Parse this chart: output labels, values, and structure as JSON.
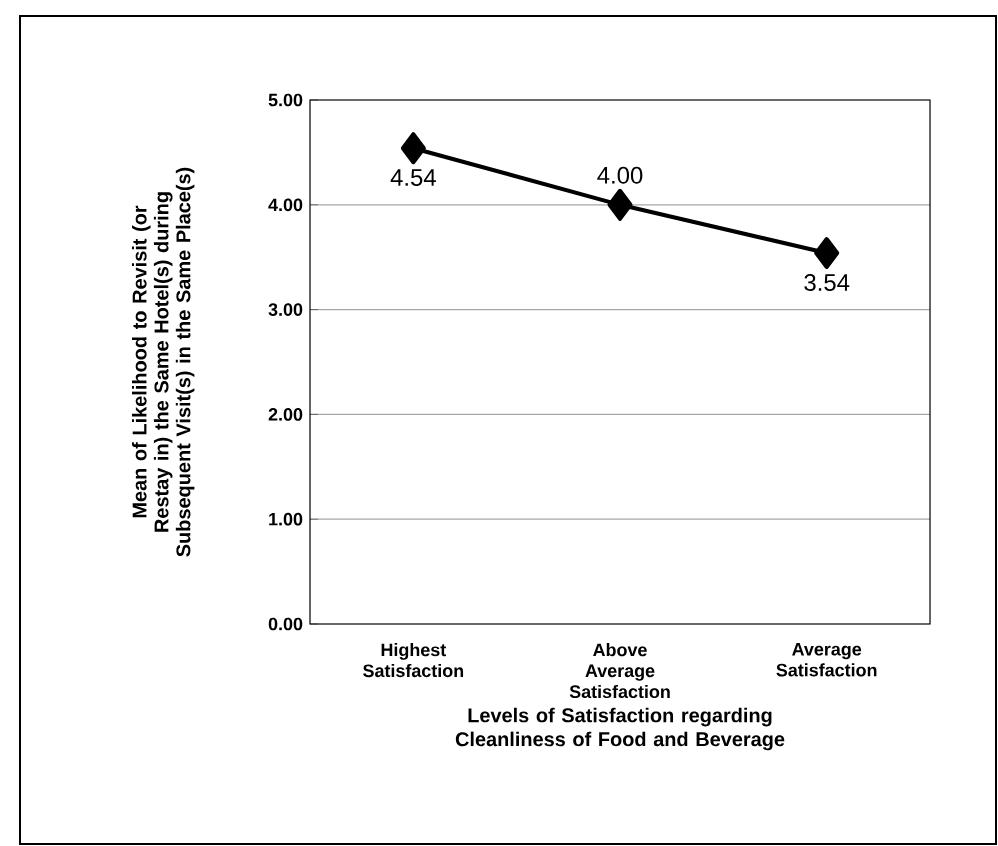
{
  "chart_data": {
    "type": "line",
    "xlabel": "Levels of Satisfaction regarding Cleanliness of Food and Beverage",
    "ylabel": "Mean of Likelihood to Revisit (or Restay in) the Same Hotel(s)  during Subsequent Visit(s) in the Same Place(s)",
    "categories": [
      "Highest Satisfaction",
      "Above Average Satisfaction",
      "Average Satisfaction"
    ],
    "values": [
      4.54,
      4.0,
      3.54
    ],
    "value_labels": [
      "4.54",
      "4.00",
      "3.54"
    ],
    "color": "#000000",
    "marker": "diamond",
    "line_style": "solid",
    "grid": "y",
    "ylim": [
      0,
      5
    ],
    "yticks": [
      {
        "value": 0,
        "label": "0.00"
      },
      {
        "value": 1,
        "label": "1.00"
      },
      {
        "value": 2,
        "label": "2.00"
      },
      {
        "value": 3,
        "label": "3.00"
      },
      {
        "value": 4,
        "label": "4.00"
      },
      {
        "value": 5,
        "label": "5.00"
      }
    ]
  }
}
